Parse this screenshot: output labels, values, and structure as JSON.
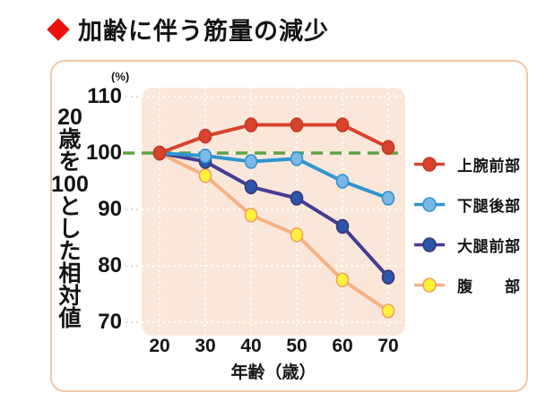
{
  "page": {
    "title": "加齢に伴う筋量の減少"
  },
  "chart_data": {
    "type": "line",
    "title": "加齢に伴う筋量の減少",
    "x": [
      20,
      30,
      40,
      50,
      60,
      70
    ],
    "xlabel": "年齢（歳）",
    "ylabel": "20歳を100とした相対値",
    "ylabel_segments": [
      "20",
      "歳",
      "を",
      "100",
      "と",
      "し",
      "た",
      "相",
      "対",
      "値"
    ],
    "y_unit": "(%)",
    "y_ticks": [
      110,
      100,
      90,
      80,
      70
    ],
    "ylim": [
      66,
      114
    ],
    "grid": {
      "style": "dotted",
      "color": "#ffffff"
    },
    "reference_line": {
      "value": 100,
      "style": "dashed",
      "color": "#5da345"
    },
    "legend_position": "right",
    "series": [
      {
        "name": "上腕前部",
        "values": [
          100,
          103,
          105,
          105,
          105,
          101
        ],
        "line_color": "#d8432e",
        "marker_fill": "#d8432e",
        "marker_stroke": "#c53823"
      },
      {
        "name": "下腿後部",
        "values": [
          100,
          99.5,
          98.5,
          99,
          95,
          92
        ],
        "line_color": "#2e95d0",
        "marker_fill": "#7cb8e6",
        "marker_stroke": "#2e95d0"
      },
      {
        "name": "大腿前部",
        "values": [
          100,
          98.5,
          94,
          92,
          87,
          78
        ],
        "line_color": "#473c93",
        "marker_fill": "#2a57a9",
        "marker_stroke": "#3b3577"
      },
      {
        "name": "腹　部",
        "values": [
          100,
          96,
          89,
          85.5,
          77.5,
          72
        ],
        "line_color": "#f6b185",
        "marker_fill": "#fff23c",
        "marker_stroke": "#eca45f"
      }
    ],
    "plot_bg": "#fbe7da",
    "panel_border": "#f2c7a5",
    "axis_text_color": "#141414"
  }
}
